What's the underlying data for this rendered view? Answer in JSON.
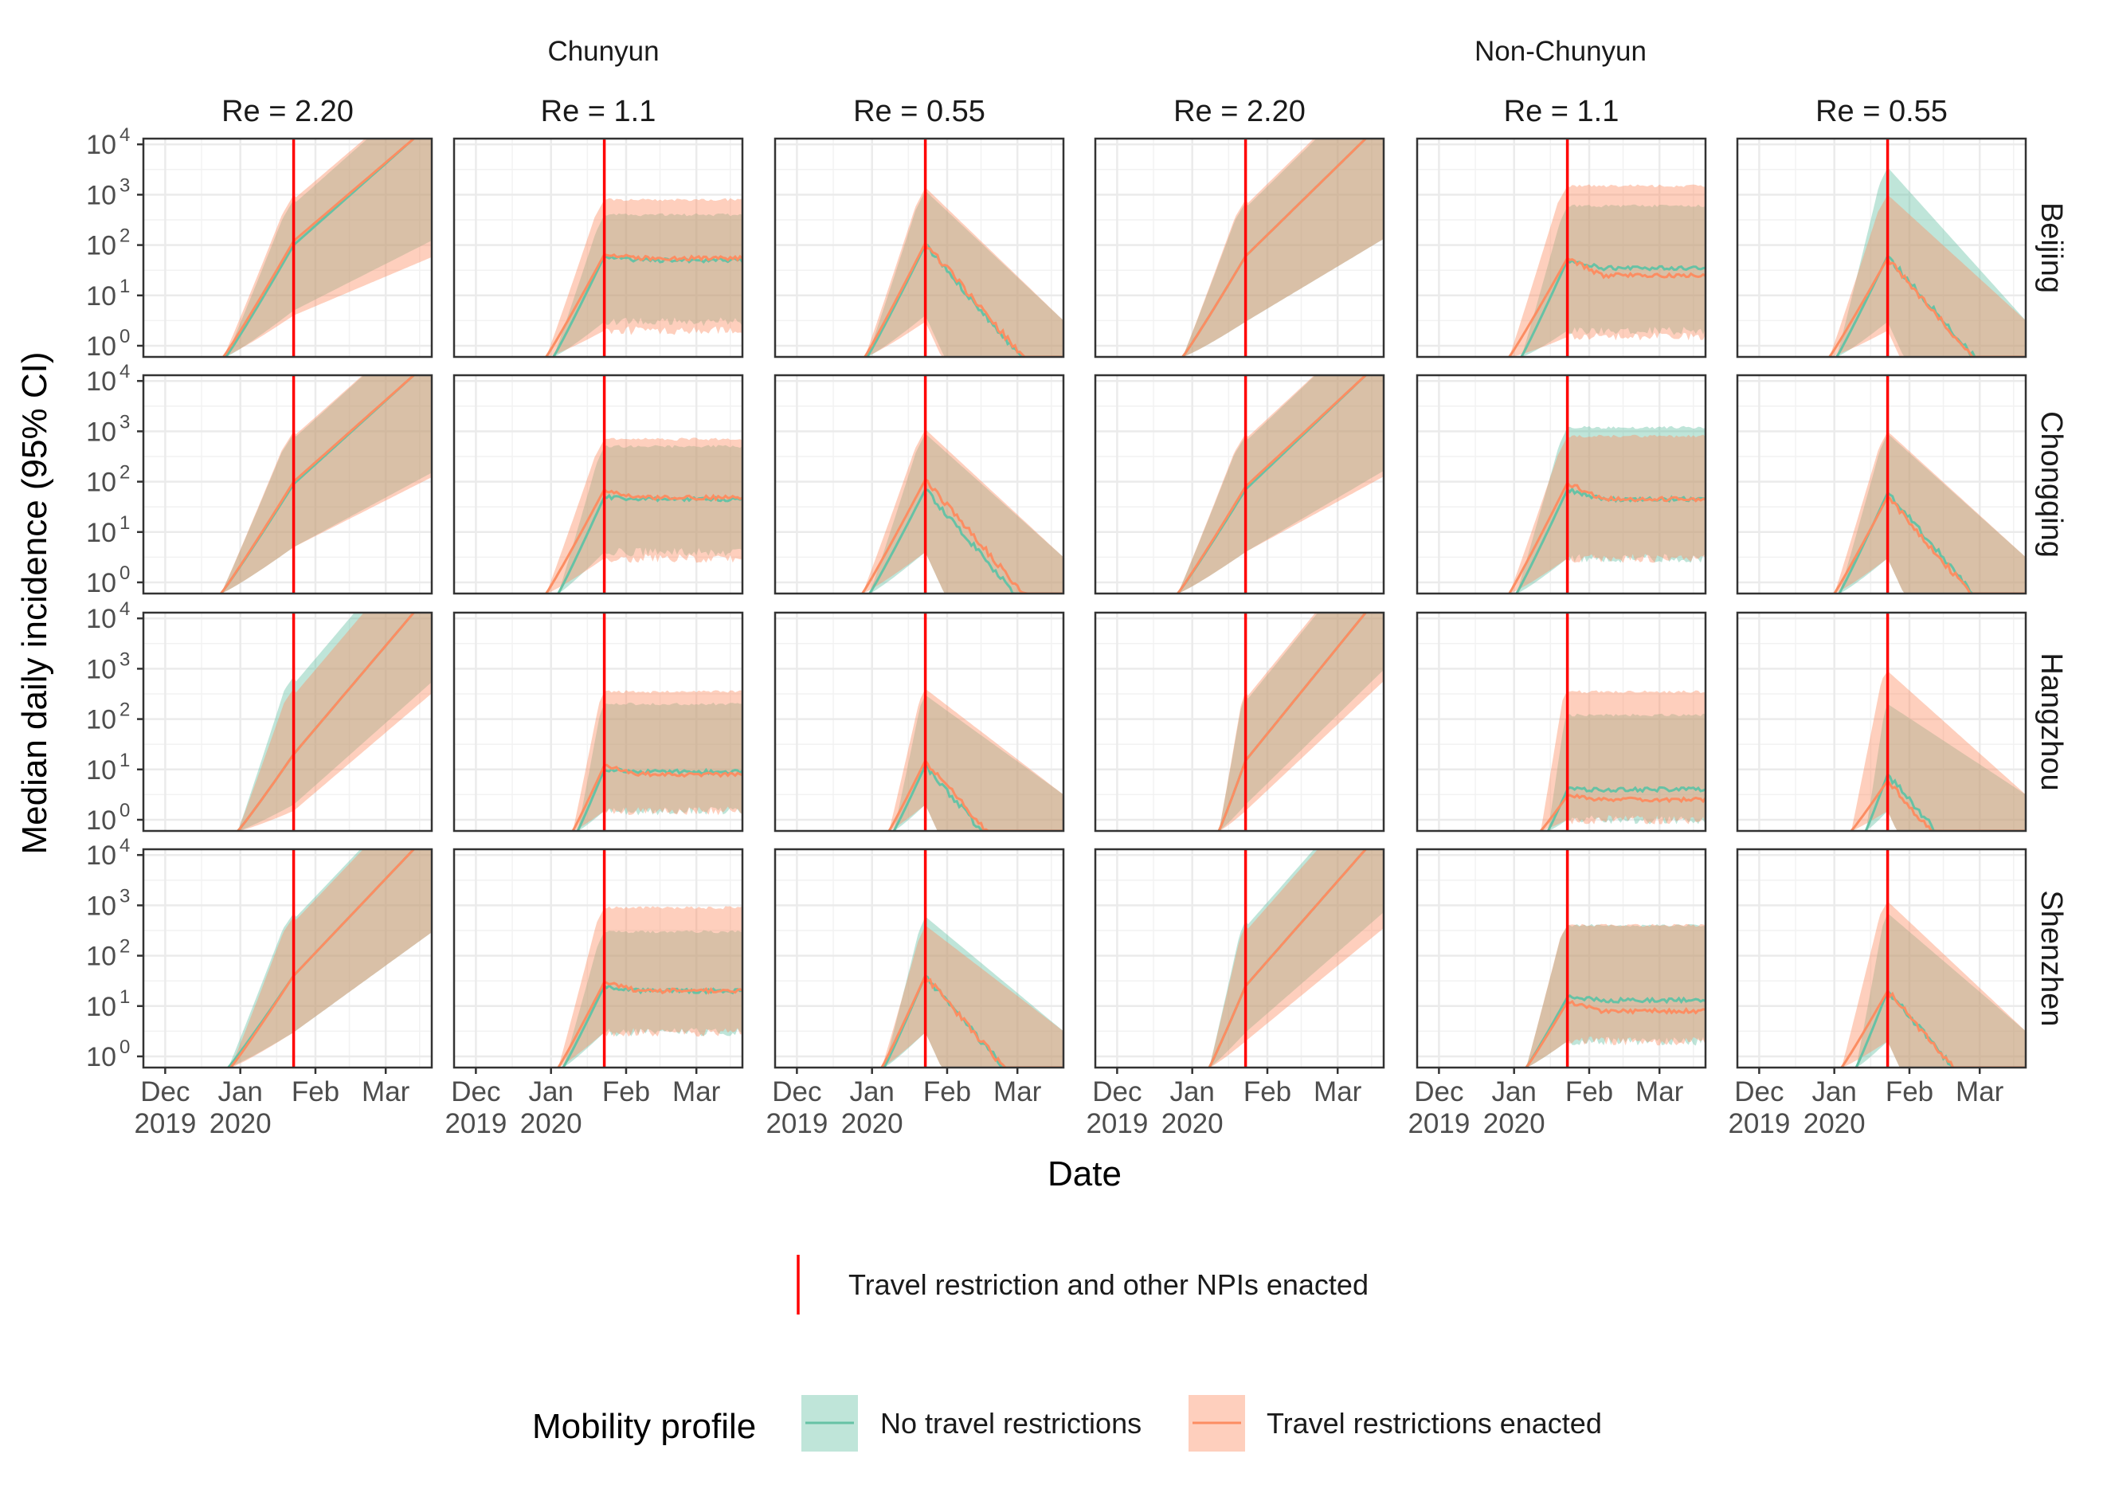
{
  "chart_data": {
    "type": "area",
    "layout": "facet grid, 4 rows x 6 columns",
    "ylabel": "Median daily incidence (95% CI)",
    "xlabel": "Date",
    "x_range": [
      "2019-11-22",
      "2020-03-20"
    ],
    "x_ticks": [
      {
        "date": "2019-12-01",
        "label": [
          "Dec",
          "2019"
        ]
      },
      {
        "date": "2020-01-01",
        "label": [
          "Jan",
          "2020"
        ]
      },
      {
        "date": "2020-02-01",
        "label": [
          "Feb"
        ]
      },
      {
        "date": "2020-03-01",
        "label": [
          "Mar"
        ]
      }
    ],
    "y_scale": "log10",
    "y_range": [
      0.6,
      13000
    ],
    "y_ticks": [
      1,
      10,
      100,
      1000,
      10000
    ],
    "y_tick_labels": [
      {
        "base": "10",
        "exp": "0"
      },
      {
        "base": "10",
        "exp": "1"
      },
      {
        "base": "10",
        "exp": "2"
      },
      {
        "base": "10",
        "exp": "3"
      },
      {
        "base": "10",
        "exp": "4"
      }
    ],
    "intervention_date": "2020-01-23",
    "column_groups": [
      {
        "label": "Chunyun",
        "columns": [
          0,
          1,
          2
        ]
      },
      {
        "label": "Non-Chunyun",
        "columns": [
          3,
          4,
          5
        ]
      }
    ],
    "columns": [
      "Re = 2.20",
      "Re = 1.1",
      "Re = 0.55",
      "Re = 2.20",
      "Re = 1.1",
      "Re = 0.55"
    ],
    "rows": [
      "Beijing",
      "Chongqing",
      "Hangzhou",
      "Shenzhen"
    ],
    "series": [
      {
        "name": "No travel restrictions",
        "color": "#66c2a5"
      },
      {
        "name": "Travel restrictions enacted",
        "color": "#fc8d62"
      }
    ],
    "panels": [
      [
        {
          "n": {
            "median": 100,
            "lo": 5,
            "hi": 800,
            "final_median": 13000,
            "start": "2019-12-26"
          },
          "t": {
            "median": 120,
            "lo": 4,
            "hi": 1000,
            "final_median": 13000,
            "start": "2019-12-25"
          }
        },
        {
          "n": {
            "median": 60,
            "lo": 3,
            "hi": 400,
            "final_median": 50,
            "start": "2020-01-02"
          },
          "t": {
            "median": 65,
            "lo": 2,
            "hi": 800,
            "final_median": 55,
            "start": "2019-12-30"
          }
        },
        {
          "n": {
            "median": 100,
            "lo": 4,
            "hi": 1200,
            "final_median": 0.6,
            "start": "2019-12-30"
          },
          "t": {
            "median": 110,
            "lo": 3,
            "hi": 1400,
            "final_median": 0.6,
            "start": "2019-12-29"
          }
        },
        {
          "n": {
            "median": 60,
            "lo": 3,
            "hi": 700,
            "final_median": 13000,
            "start": "2019-12-28"
          },
          "t": {
            "median": 60,
            "lo": 3,
            "hi": 800,
            "final_median": 13000,
            "start": "2019-12-28"
          }
        },
        {
          "n": {
            "median": 50,
            "lo": 2,
            "hi": 600,
            "final_median": 35,
            "start": "2020-01-04"
          },
          "t": {
            "median": 55,
            "lo": 1.5,
            "hi": 1500,
            "final_median": 25,
            "start": "2019-12-30"
          }
        },
        {
          "n": {
            "median": 60,
            "lo": 3,
            "hi": 3500,
            "final_median": 0.6,
            "start": "2020-01-02"
          },
          "t": {
            "median": 55,
            "lo": 2,
            "hi": 1000,
            "final_median": 0.6,
            "start": "2019-12-30"
          }
        }
      ],
      [
        {
          "n": {
            "median": 90,
            "lo": 5,
            "hi": 900,
            "final_median": 13000,
            "start": "2019-12-24"
          },
          "t": {
            "median": 100,
            "lo": 5,
            "hi": 1000,
            "final_median": 13000,
            "start": "2019-12-24"
          }
        },
        {
          "n": {
            "median": 50,
            "lo": 4,
            "hi": 500,
            "final_median": 45,
            "start": "2020-01-04"
          },
          "t": {
            "median": 70,
            "lo": 3,
            "hi": 700,
            "final_median": 48,
            "start": "2019-12-30"
          }
        },
        {
          "n": {
            "median": 70,
            "lo": 4,
            "hi": 900,
            "final_median": 0.6,
            "start": "2019-12-31"
          },
          "t": {
            "median": 110,
            "lo": 4,
            "hi": 1100,
            "final_median": 0.6,
            "start": "2019-12-28"
          }
        },
        {
          "n": {
            "median": 70,
            "lo": 4,
            "hi": 800,
            "final_median": 13000,
            "start": "2019-12-26"
          },
          "t": {
            "median": 80,
            "lo": 4,
            "hi": 900,
            "final_median": 13000,
            "start": "2019-12-26"
          }
        },
        {
          "n": {
            "median": 70,
            "lo": 3,
            "hi": 1200,
            "final_median": 45,
            "start": "2020-01-02"
          },
          "t": {
            "median": 95,
            "lo": 3,
            "hi": 800,
            "final_median": 45,
            "start": "2019-12-30"
          }
        },
        {
          "n": {
            "median": 60,
            "lo": 3,
            "hi": 900,
            "final_median": 0.6,
            "start": "2020-01-03"
          },
          "t": {
            "median": 50,
            "lo": 3,
            "hi": 1000,
            "final_median": 0.6,
            "start": "2020-01-01"
          }
        }
      ],
      [
        {
          "n": {
            "median": 20,
            "lo": 2,
            "hi": 700,
            "final_median": 13000,
            "start": "2019-12-31"
          },
          "t": {
            "median": 20,
            "lo": 1.5,
            "hi": 400,
            "final_median": 13000,
            "start": "2019-12-31"
          }
        },
        {
          "n": {
            "median": 10,
            "lo": 1.5,
            "hi": 200,
            "final_median": 9,
            "start": "2020-01-12"
          },
          "t": {
            "median": 12,
            "lo": 1.5,
            "hi": 350,
            "final_median": 8,
            "start": "2020-01-10"
          }
        },
        {
          "n": {
            "median": 12,
            "lo": 2,
            "hi": 300,
            "final_median": 0.6,
            "start": "2020-01-10"
          },
          "t": {
            "median": 15,
            "lo": 2,
            "hi": 400,
            "final_median": 0.6,
            "start": "2020-01-08"
          }
        },
        {
          "n": {
            "median": 15,
            "lo": 2,
            "hi": 300,
            "final_median": 13000,
            "start": "2020-01-12"
          },
          "t": {
            "median": 15,
            "lo": 1.5,
            "hi": 350,
            "final_median": 13000,
            "start": "2020-01-12"
          }
        },
        {
          "n": {
            "median": 4,
            "lo": 1,
            "hi": 120,
            "final_median": 4,
            "start": "2020-01-15"
          },
          "t": {
            "median": 3,
            "lo": 1,
            "hi": 350,
            "final_median": 2.5,
            "start": "2020-01-12"
          }
        },
        {
          "n": {
            "median": 8,
            "lo": 1.5,
            "hi": 200,
            "final_median": 0.6,
            "start": "2020-01-14"
          },
          "t": {
            "median": 6,
            "lo": 1.5,
            "hi": 900,
            "final_median": 0.6,
            "start": "2020-01-08"
          }
        }
      ],
      [
        {
          "n": {
            "median": 40,
            "lo": 3,
            "hi": 700,
            "final_median": 13000,
            "start": "2019-12-27"
          },
          "t": {
            "median": 40,
            "lo": 3,
            "hi": 600,
            "final_median": 13000,
            "start": "2019-12-28"
          }
        },
        {
          "n": {
            "median": 25,
            "lo": 3,
            "hi": 300,
            "final_median": 20,
            "start": "2020-01-06"
          },
          "t": {
            "median": 30,
            "lo": 3,
            "hi": 900,
            "final_median": 20,
            "start": "2020-01-04"
          }
        },
        {
          "n": {
            "median": 40,
            "lo": 3,
            "hi": 600,
            "final_median": 0.6,
            "start": "2020-01-06"
          },
          "t": {
            "median": 40,
            "lo": 3,
            "hi": 400,
            "final_median": 0.6,
            "start": "2020-01-05"
          }
        },
        {
          "n": {
            "median": 25,
            "lo": 3,
            "hi": 500,
            "final_median": 13000,
            "start": "2020-01-08"
          },
          "t": {
            "median": 25,
            "lo": 2,
            "hi": 400,
            "final_median": 13000,
            "start": "2020-01-08"
          }
        },
        {
          "n": {
            "median": 15,
            "lo": 2,
            "hi": 400,
            "final_median": 13,
            "start": "2020-01-06"
          },
          "t": {
            "median": 12,
            "lo": 2,
            "hi": 400,
            "final_median": 8,
            "start": "2020-01-06"
          }
        },
        {
          "n": {
            "median": 20,
            "lo": 2,
            "hi": 700,
            "final_median": 0.6,
            "start": "2020-01-10"
          },
          "t": {
            "median": 20,
            "lo": 2,
            "hi": 1200,
            "final_median": 0.6,
            "start": "2020-01-04"
          }
        }
      ]
    ],
    "legend_npi": "Travel restriction and other NPIs enacted",
    "legend_title": "Mobility profile",
    "colors": {
      "npi_line": "#ff0000",
      "no_restrictions": "#66c2a5",
      "restrictions": "#fc8d62",
      "grid": "#ebebeb",
      "panel_border": "#333333"
    }
  }
}
